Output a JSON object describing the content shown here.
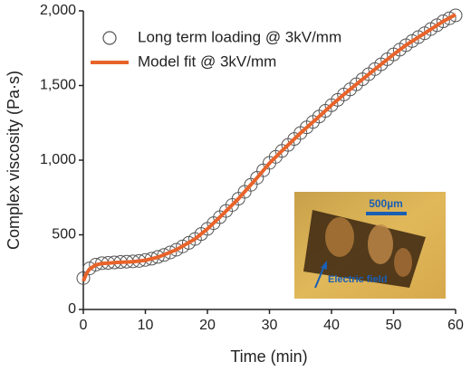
{
  "chart_data": {
    "type": "scatter",
    "x_label": "Time (min)",
    "y_label": "Complex viscosity (Pa·s)",
    "xlim": [
      0,
      60
    ],
    "xticks": [
      0,
      10,
      20,
      30,
      40,
      50,
      60
    ],
    "ylim": [
      0,
      2000
    ],
    "yticks": [
      0,
      500,
      {
        "value": 1000,
        "label": "1,000"
      },
      {
        "value": 1500,
        "label": "1,500"
      },
      {
        "value": 2000,
        "label": "2,000"
      }
    ],
    "legend": "upper left",
    "series": [
      {
        "name": "Long term loading @ 3kV/mm",
        "type": "scatter",
        "color": "#555555",
        "x": [
          0,
          1,
          2,
          3,
          4,
          5,
          6,
          7,
          8,
          9,
          10,
          11,
          12,
          13,
          14,
          15,
          16,
          17,
          18,
          19,
          20,
          21,
          22,
          23,
          24,
          25,
          26,
          27,
          28,
          29,
          30,
          31,
          32,
          33,
          34,
          35,
          36,
          37,
          38,
          39,
          40,
          41,
          42,
          43,
          44,
          45,
          46,
          47,
          48,
          49,
          50,
          51,
          52,
          53,
          54,
          55,
          56,
          57,
          58,
          59,
          60
        ],
        "values": [
          210,
          275,
          300,
          310,
          312,
          315,
          318,
          320,
          322,
          325,
          332,
          340,
          352,
          365,
          382,
          400,
          422,
          446,
          472,
          505,
          540,
          578,
          618,
          660,
          700,
          742,
          788,
          835,
          882,
          932,
          982,
          1022,
          1062,
          1102,
          1142,
          1182,
          1220,
          1256,
          1292,
          1330,
          1368,
          1404,
          1440,
          1474,
          1508,
          1542,
          1576,
          1610,
          1642,
          1676,
          1708,
          1740,
          1770,
          1798,
          1824,
          1850,
          1878,
          1904,
          1930,
          1950,
          1970
        ]
      },
      {
        "name": "Model fit @ 3kV/mm",
        "type": "line",
        "color": "#e8632a",
        "x": [
          0,
          0.5,
          1,
          2,
          3,
          5,
          8,
          10,
          12,
          15,
          18,
          20,
          22,
          25,
          28,
          30,
          32,
          35,
          38,
          40,
          42,
          45,
          48,
          50,
          52,
          55,
          58,
          60
        ],
        "values": [
          190,
          240,
          270,
          298,
          308,
          314,
          320,
          330,
          350,
          400,
          472,
          540,
          618,
          742,
          882,
          980,
          1062,
          1182,
          1292,
          1368,
          1440,
          1542,
          1642,
          1708,
          1770,
          1850,
          1930,
          1975
        ]
      }
    ],
    "inset": {
      "scale_label": "500µm",
      "arrow_label": "Electric field"
    }
  }
}
